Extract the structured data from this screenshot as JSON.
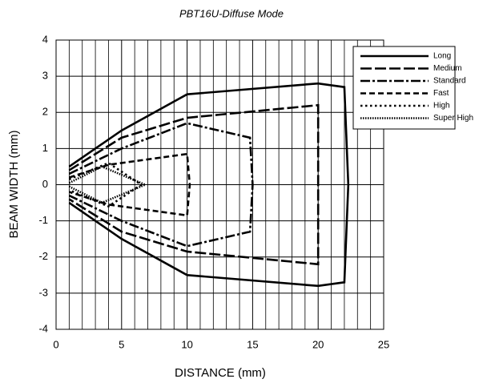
{
  "chart_data": {
    "type": "line",
    "title": "PBT16U-Diffuse Mode",
    "x_label": "DISTANCE (mm)",
    "y_label": "BEAM WIDTH (mm)",
    "xlim": [
      0,
      25
    ],
    "ylim": [
      -4,
      4
    ],
    "xticks": [
      0,
      5,
      10,
      15,
      20,
      25
    ],
    "yticks": [
      -4,
      -3,
      -2,
      -1,
      0,
      1,
      2,
      3,
      4
    ],
    "grid": true,
    "legend": "upper right",
    "series": [
      {
        "name": "Long",
        "color": "#000000",
        "dash": "solid",
        "x": [
          1,
          5,
          10,
          20,
          22,
          22.3,
          22,
          20,
          10,
          5,
          1
        ],
        "values": [
          0.5,
          1.5,
          2.5,
          2.8,
          2.7,
          0,
          -2.7,
          -2.8,
          -2.5,
          -1.5,
          -0.5
        ]
      },
      {
        "name": "Medium",
        "color": "#000000",
        "dash": "long-dash",
        "x": [
          1,
          5,
          10,
          20,
          20,
          20,
          10,
          5,
          1
        ],
        "values": [
          0.4,
          1.3,
          1.85,
          2.2,
          0,
          -2.2,
          -1.85,
          -1.3,
          -0.4
        ]
      },
      {
        "name": "Standard",
        "color": "#000000",
        "dash": "dash-dot",
        "x": [
          1,
          5,
          10,
          14.8,
          15,
          14.8,
          10,
          5,
          1
        ],
        "values": [
          0.3,
          1.0,
          1.7,
          1.3,
          0,
          -1.3,
          -1.7,
          -1.0,
          -0.3
        ]
      },
      {
        "name": "Fast",
        "color": "#000000",
        "dash": "dash",
        "x": [
          1,
          4,
          10,
          10.2,
          10,
          4,
          1
        ],
        "values": [
          0.2,
          0.55,
          0.85,
          0,
          -0.85,
          -0.55,
          -0.2
        ]
      },
      {
        "name": "High",
        "color": "#000000",
        "dash": "dot",
        "x": [
          1,
          4,
          6.5,
          4,
          1
        ],
        "values": [
          0.15,
          0.6,
          0,
          -0.6,
          -0.15
        ]
      },
      {
        "name": "Super High",
        "color": "#000000",
        "dash": "fine-dot",
        "x": [
          1,
          3.5,
          6.8,
          3.5,
          1
        ],
        "values": [
          0.05,
          0.5,
          0,
          -0.5,
          -0.05
        ]
      }
    ]
  }
}
